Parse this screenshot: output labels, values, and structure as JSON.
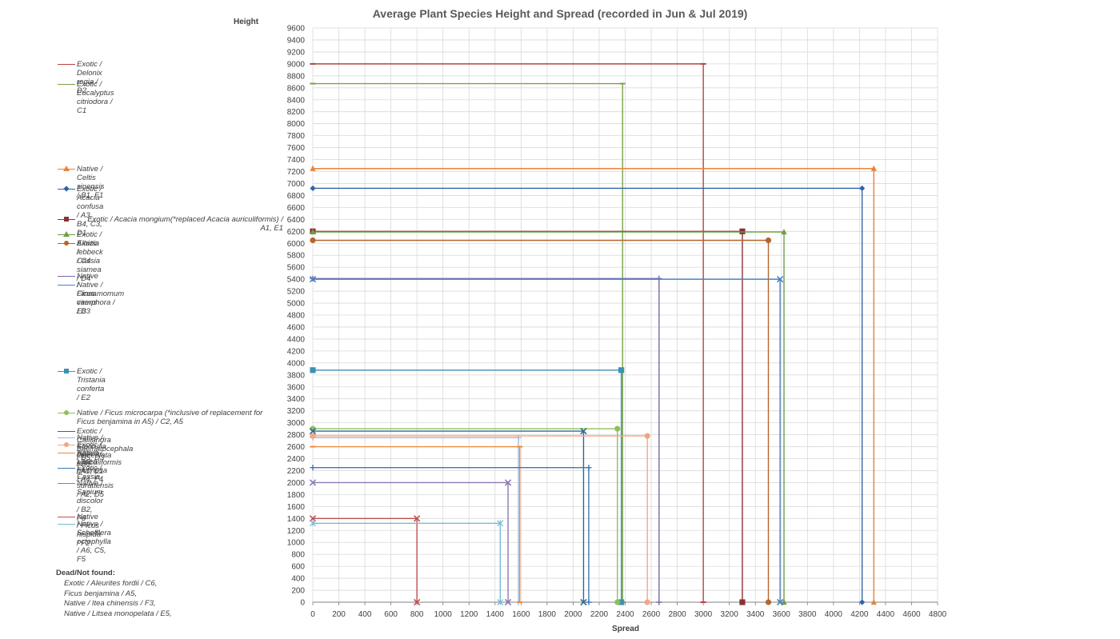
{
  "chart_data": {
    "type": "line",
    "title": "Average Plant Species Height and Spread (recorded in Jun & Jul 2019)",
    "xlabel": "Spread",
    "ylabel": "Height",
    "xlim": [
      0,
      4800
    ],
    "ylim": [
      0,
      9600
    ],
    "x_ticks": [
      "0",
      "200",
      "400",
      "600",
      "800",
      "1000",
      "1200",
      "1400",
      "1600",
      "1800",
      "2000",
      "2200",
      "2400",
      "2600",
      "2800",
      "3000",
      "3200",
      "3400",
      "3600",
      "3800",
      "4000",
      "4200",
      "4400",
      "4600",
      "4800"
    ],
    "y_ticks": [
      "0",
      "200",
      "400",
      "600",
      "800",
      "1000",
      "1200",
      "1400",
      "1600",
      "1800",
      "2000",
      "2200",
      "2400",
      "2600",
      "2800",
      "3000",
      "3200",
      "3400",
      "3600",
      "3800",
      "4000",
      "4200",
      "4400",
      "4600",
      "4800",
      "5000",
      "5200",
      "5400",
      "5600",
      "5800",
      "6000",
      "6200",
      "6400",
      "6600",
      "6800",
      "7000",
      "7200",
      "7400",
      "7600",
      "7800",
      "8000",
      "8200",
      "8400",
      "8600",
      "8800",
      "9000",
      "9200",
      "9400",
      "9600"
    ],
    "grid": true,
    "legend_position": "left",
    "series": [
      {
        "name": "Exotic /  Delonix regia / D2",
        "spread": 3000,
        "height": 9000,
        "color": "#B5443F",
        "marker": "dash"
      },
      {
        "name": "Exotic /  Eucalyptus citriodora / C1",
        "spread": 2380,
        "height": 8670,
        "color": "#7AA446",
        "marker": "dash"
      },
      {
        "name": "Native /  Celtis sinensis / B1, F1",
        "spread": 4310,
        "height": 7250,
        "color": "#E8843A",
        "marker": "triangle"
      },
      {
        "name": "Exotic /  Acacia confusa / A3, B4, C3, D1",
        "spread": 4220,
        "height": 6920,
        "color": "#2E64A6",
        "marker": "diamond"
      },
      {
        "name": "Exotic /  Acacia mongium(*replaced Acacia auriculiformis) /\nA1, E1",
        "spread": 3300,
        "height": 6200,
        "color": "#8B3232",
        "marker": "square"
      },
      {
        "name": "Exotic /  Albizia lebbeck / C4",
        "spread": 3620,
        "height": 6190,
        "color": "#6FA045",
        "marker": "triangle"
      },
      {
        "name": "Exotic /  Cassia siamea / D4",
        "spread": 3500,
        "height": 6050,
        "color": "#B5652E",
        "marker": "circle"
      },
      {
        "name": "Native /  Ficus virens / B3",
        "spread": 2660,
        "height": 5410,
        "color": "#7A68A8",
        "marker": "plus"
      },
      {
        "name": "Native /  Cinnamomum camphora / E3",
        "spread": 3590,
        "height": 5400,
        "color": "#4A82BD",
        "marker": "x"
      },
      {
        "name": "Exotic /  Tristania conferta / E2",
        "spread": 2370,
        "height": 3880,
        "color": "#3C91B4",
        "marker": "square"
      },
      {
        "name": "Native /  Ficus microcarpa (*inclusive of replacement for\nFicus benjamina in A5) / C2, A5",
        "spread": 2340,
        "height": 2900,
        "color": "#8DC05A",
        "marker": "circle"
      },
      {
        "name": "Exotic /  Calliandra haematocephala / B5, D3",
        "spread": 2080,
        "height": 2860,
        "color": "#2E6A8E",
        "marker": "x"
      },
      {
        "name": "Native /  Sterculia lanceolata / B6",
        "spread": 1580,
        "height": 2750,
        "color": "#A7B7D9",
        "marker": "plus"
      },
      {
        "name": "Exotic /  Acacia auriculiformis / A1, E1",
        "spread": 2570,
        "height": 2780,
        "color": "#F4A582",
        "marker": "circle"
      },
      {
        "name": "Native /  Litsea glutinosa / A4, F4",
        "spread": 1590,
        "height": 2600,
        "color": "#F08A3C",
        "marker": "dash"
      },
      {
        "name": "Exotic /  Cassia surattensis / A2, D5",
        "spread": 2120,
        "height": 2250,
        "color": "#3C78B4",
        "marker": "plus"
      },
      {
        "name": "Native /  Sapium discolor / B2, F6",
        "spread": 1500,
        "height": 2000,
        "color": "#8C7AB5",
        "marker": "x"
      },
      {
        "name": "Native /  Ficus hispida / F2",
        "spread": 800,
        "height": 1400,
        "color": "#C0504D",
        "marker": "x"
      },
      {
        "name": "Native /  Schefflera octophylla / A6, C5, F5",
        "spread": 1440,
        "height": 1320,
        "color": "#7BBAD6",
        "marker": "asterisk"
      }
    ]
  },
  "dead": {
    "title": "Dead/Not found:",
    "items": [
      "Exotic / Aleurites fordii / C6,",
      "Ficus benjamina / A5,",
      "Native / Itea chinensis / F3,",
      "Native / Litsea monopelata / E5,"
    ]
  }
}
